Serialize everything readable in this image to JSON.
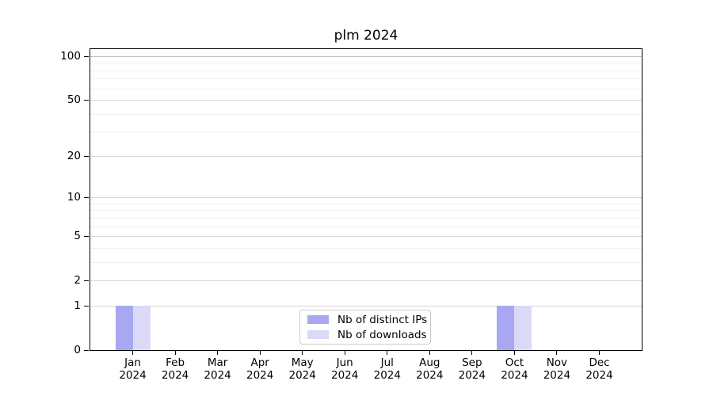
{
  "title": "plm 2024",
  "chart_data": {
    "type": "bar",
    "title": "plm 2024",
    "categories": [
      "Jan 2024",
      "Feb 2024",
      "Mar 2024",
      "Apr 2024",
      "May 2024",
      "Jun 2024",
      "Jul 2024",
      "Aug 2024",
      "Sep 2024",
      "Oct 2024",
      "Nov 2024",
      "Dec 2024"
    ],
    "series": [
      {
        "name": "Nb of distinct IPs",
        "color": "#a8a8f2",
        "values": [
          1,
          0,
          0,
          0,
          0,
          0,
          0,
          0,
          0,
          1,
          0,
          0
        ]
      },
      {
        "name": "Nb of downloads",
        "color": "#dadaf8",
        "values": [
          1,
          0,
          0,
          0,
          0,
          0,
          0,
          0,
          0,
          1,
          0,
          0
        ]
      }
    ],
    "xlabel": "",
    "ylabel": "",
    "y_scale": "log1p",
    "y_max": 112,
    "y_ticks": [
      0,
      1,
      2,
      5,
      10,
      20,
      50,
      100
    ],
    "y_minor_gridlines": [
      3,
      4,
      6,
      7,
      8,
      9,
      30,
      40,
      60,
      70,
      80,
      90
    ],
    "grid": "horizontal",
    "legend_position": "lower center",
    "top_gridline_color": "#bfbfbf"
  }
}
